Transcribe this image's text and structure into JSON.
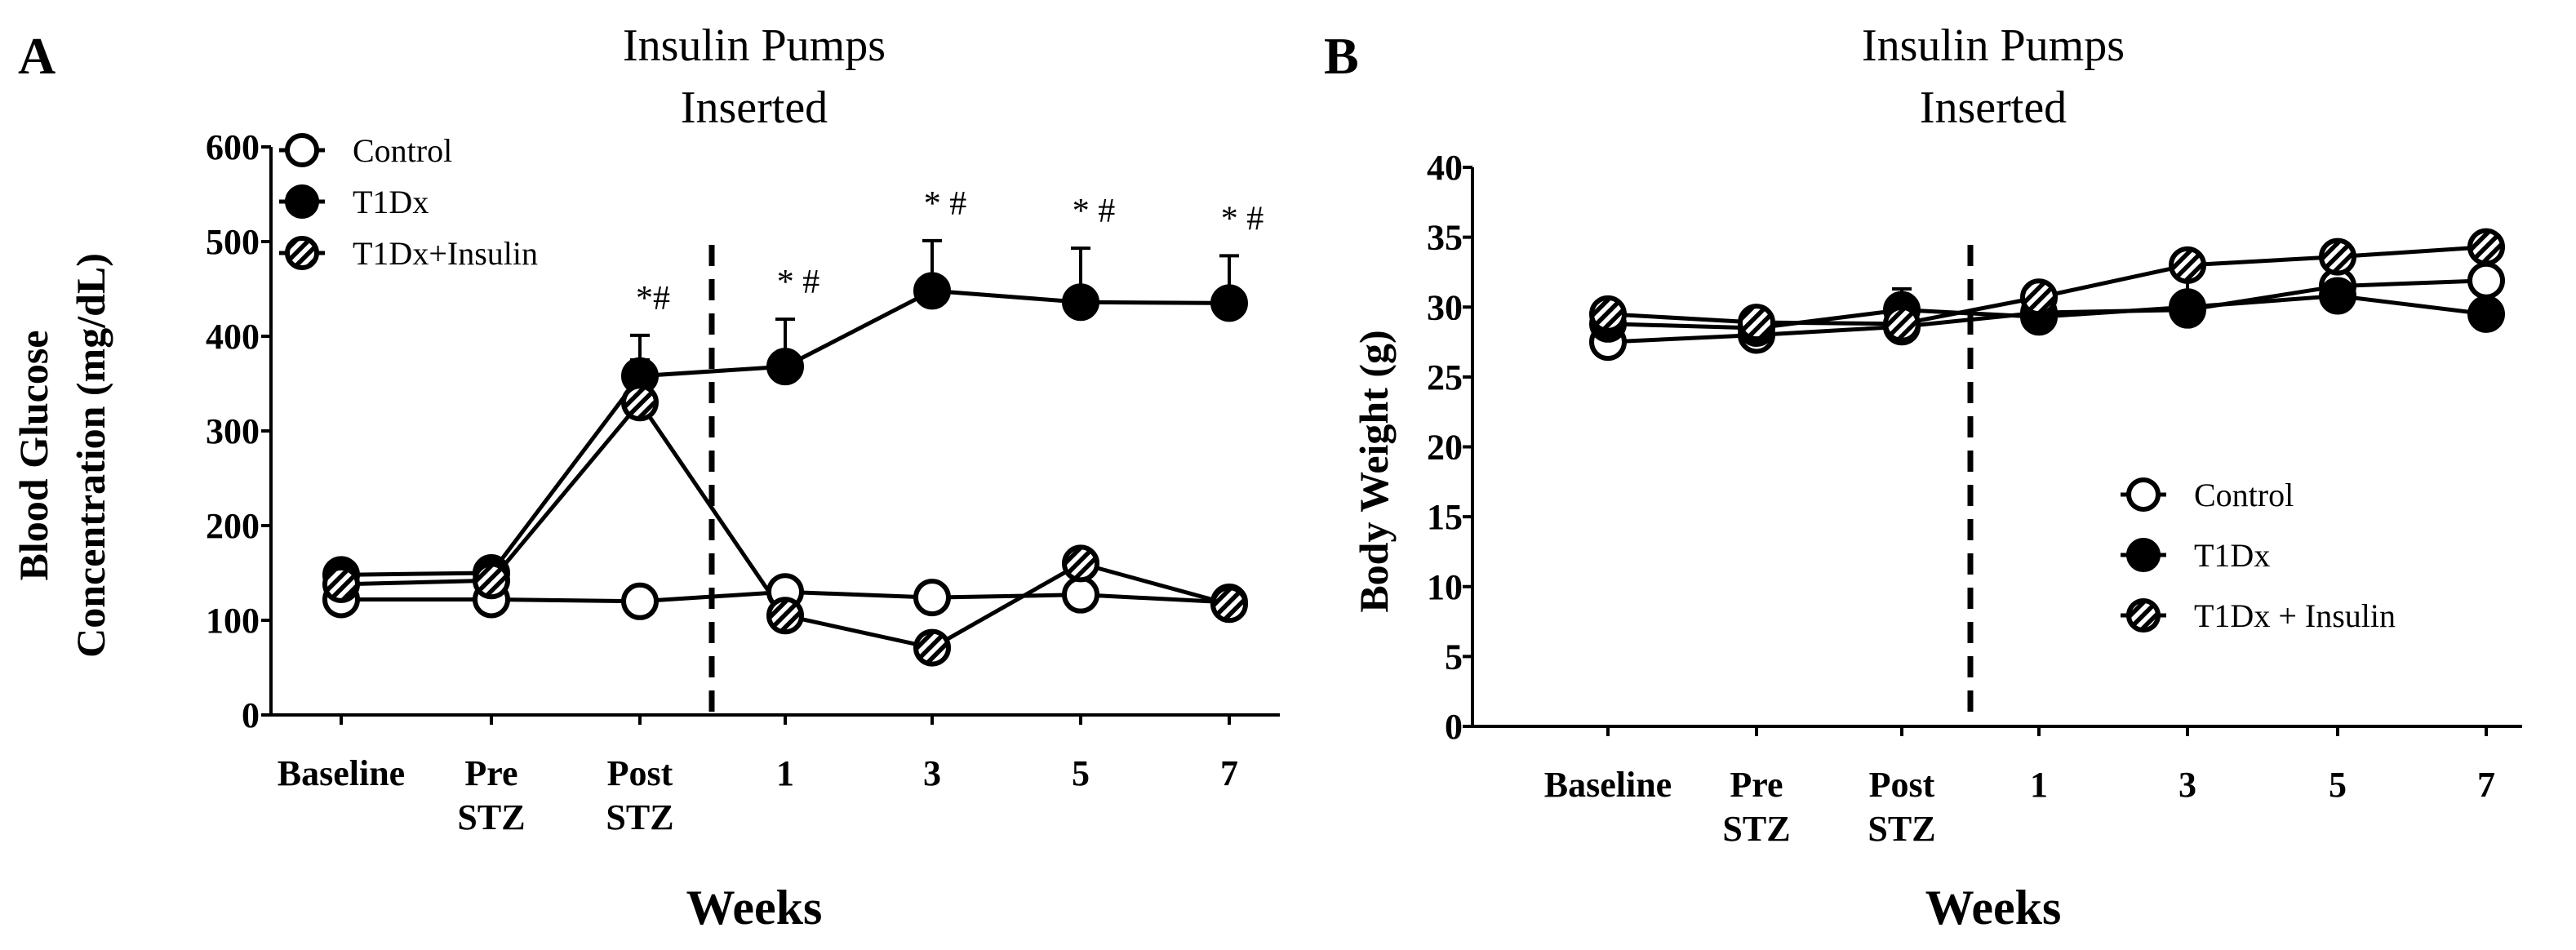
{
  "chart_data": [
    {
      "panel": "A",
      "type": "line",
      "title": "",
      "annotation": [
        "Insulin Pumps",
        "Inserted"
      ],
      "xlabel": "Weeks",
      "ylabel": [
        "Blood Glucose",
        "Concentration (mg/dL)"
      ],
      "ylim": [
        0,
        600
      ],
      "yticks": [
        0,
        100,
        200,
        300,
        400,
        500,
        600
      ],
      "categories": [
        [
          "Baseline"
        ],
        [
          "Pre",
          "STZ"
        ],
        [
          "Post",
          "STZ"
        ],
        [
          "1"
        ],
        [
          "3"
        ],
        [
          "5"
        ],
        [
          "7"
        ]
      ],
      "divider_after_index": 2,
      "legend": [
        "Control",
        "T1Dx",
        "T1Dx+Insulin"
      ],
      "series": [
        {
          "name": "Control",
          "marker": "open",
          "values": [
            122,
            122,
            120,
            130,
            124,
            127,
            119
          ],
          "error": [
            0,
            0,
            0,
            0,
            0,
            0,
            0
          ]
        },
        {
          "name": "T1Dx",
          "marker": "filled",
          "values": [
            148,
            150,
            358,
            368,
            448,
            436,
            435
          ],
          "error": [
            0,
            0,
            43,
            50,
            53,
            57,
            50
          ]
        },
        {
          "name": "T1Dx+Insulin",
          "marker": "hatched",
          "values": [
            138,
            142,
            330,
            105,
            71,
            160,
            117
          ],
          "error": [
            0,
            0,
            45,
            0,
            0,
            0,
            0
          ]
        }
      ],
      "sig_marks": [
        {
          "index": 2,
          "text": "*#"
        },
        {
          "index": 3,
          "text": "* #"
        },
        {
          "index": 4,
          "text": "* #"
        },
        {
          "index": 5,
          "text": "* #"
        },
        {
          "index": 6,
          "text": "* #"
        }
      ]
    },
    {
      "panel": "B",
      "type": "line",
      "title": "",
      "annotation": [
        "Insulin Pumps",
        "Inserted"
      ],
      "xlabel": "Weeks",
      "ylabel": [
        "Body Weight (g)"
      ],
      "ylim": [
        0,
        40
      ],
      "yticks": [
        0,
        5,
        10,
        15,
        20,
        25,
        30,
        35,
        40
      ],
      "categories": [
        [
          "Baseline"
        ],
        [
          "Pre",
          "STZ"
        ],
        [
          "Post",
          "STZ"
        ],
        [
          "1"
        ],
        [
          "3"
        ],
        [
          "5"
        ],
        [
          "7"
        ]
      ],
      "divider_after_index": 2,
      "legend": [
        "Control",
        "T1Dx",
        "T1Dx + Insulin"
      ],
      "series": [
        {
          "name": "Control",
          "marker": "open",
          "values": [
            27.5,
            28.0,
            28.6,
            29.6,
            29.8,
            31.5,
            31.9
          ],
          "error": [
            0,
            0,
            0,
            0,
            0,
            0,
            0
          ]
        },
        {
          "name": "T1Dx",
          "marker": "filled",
          "values": [
            28.8,
            28.5,
            29.8,
            29.3,
            30.0,
            30.8,
            29.5
          ],
          "error": [
            0,
            0,
            1.5,
            0,
            2.0,
            0,
            0
          ]
        },
        {
          "name": "T1Dx + Insulin",
          "marker": "hatched",
          "values": [
            29.5,
            28.9,
            28.8,
            30.7,
            33.0,
            33.6,
            34.3
          ],
          "error": [
            0,
            0,
            0,
            0,
            0,
            0,
            0
          ]
        }
      ],
      "sig_marks": []
    }
  ]
}
